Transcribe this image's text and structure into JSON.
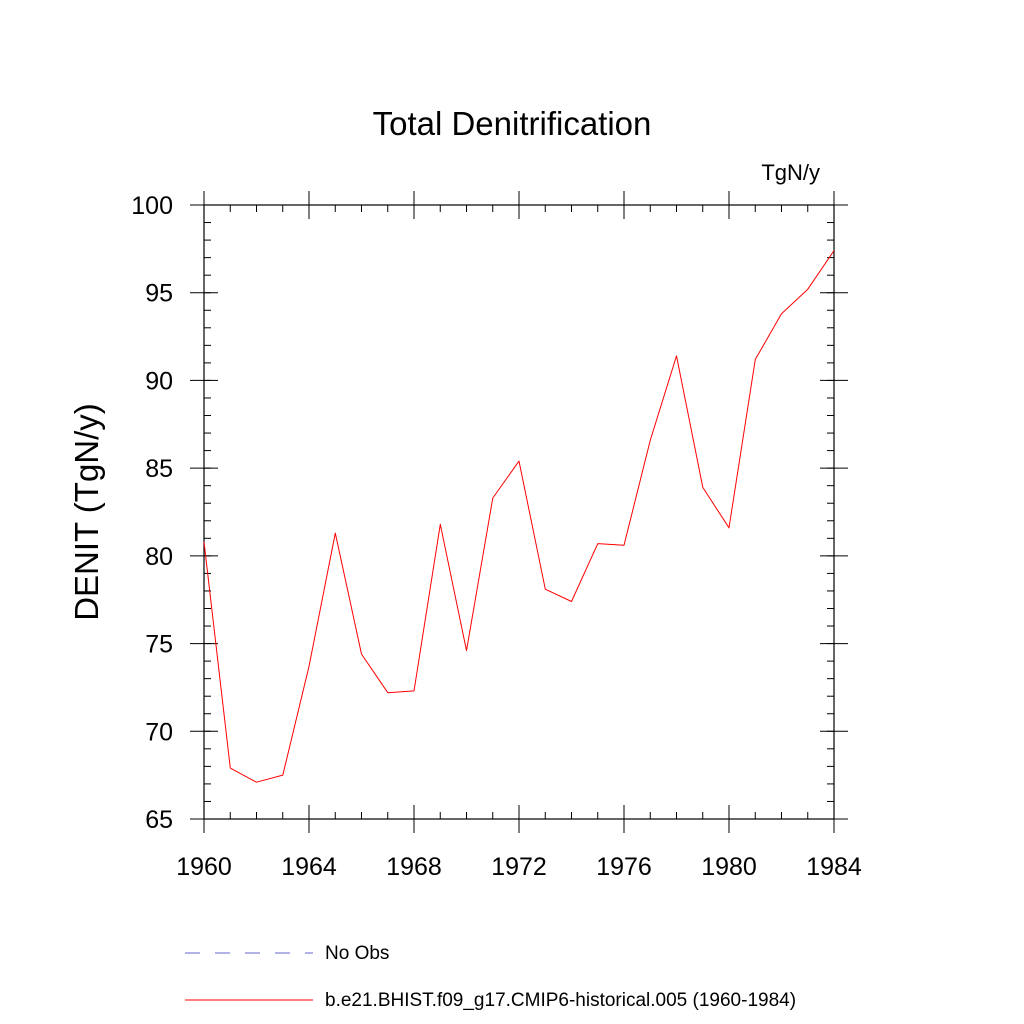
{
  "chart_data": {
    "type": "line",
    "title": "Total Denitrification",
    "units": "TgN/y",
    "xlabel": "",
    "ylabel": "DENIT  (TgN/y)",
    "xlim": [
      1960,
      1984
    ],
    "ylim": [
      65,
      100
    ],
    "xticks": [
      1960,
      1964,
      1968,
      1972,
      1976,
      1980,
      1984
    ],
    "xtick_labels": [
      "1960",
      "1964",
      "1968",
      "1972",
      "1976",
      "1980",
      "1984"
    ],
    "yticks": [
      65,
      70,
      75,
      80,
      85,
      90,
      95,
      100
    ],
    "ytick_labels": [
      "65",
      "70",
      "75",
      "80",
      "85",
      "90",
      "95",
      "100"
    ],
    "x_minor_step": 1,
    "y_minor_step": 1,
    "grid": false,
    "legend_position": "bottom-center",
    "series": [
      {
        "name": "b.e21.BHIST.f09_g17.CMIP6-historical.005 (1960-1984)",
        "color": "#ff0000",
        "style": "solid",
        "x": [
          1960,
          1961,
          1962,
          1963,
          1964,
          1965,
          1966,
          1967,
          1968,
          1969,
          1970,
          1971,
          1972,
          1973,
          1974,
          1975,
          1976,
          1977,
          1978,
          1979,
          1980,
          1981,
          1982,
          1983,
          1984
        ],
        "values": [
          80.8,
          67.9,
          67.1,
          67.5,
          73.7,
          81.3,
          74.4,
          72.2,
          72.3,
          81.8,
          74.6,
          83.3,
          85.4,
          78.1,
          77.4,
          80.7,
          80.6,
          86.6,
          91.4,
          83.9,
          81.6,
          91.2,
          93.8,
          95.2,
          97.4
        ]
      }
    ],
    "legend": [
      {
        "label": "No Obs",
        "color": "#6666cc",
        "style": "dashed"
      },
      {
        "label": "b.e21.BHIST.f09_g17.CMIP6-historical.005 (1960-1984)",
        "color": "#ff0000",
        "style": "solid"
      }
    ]
  }
}
